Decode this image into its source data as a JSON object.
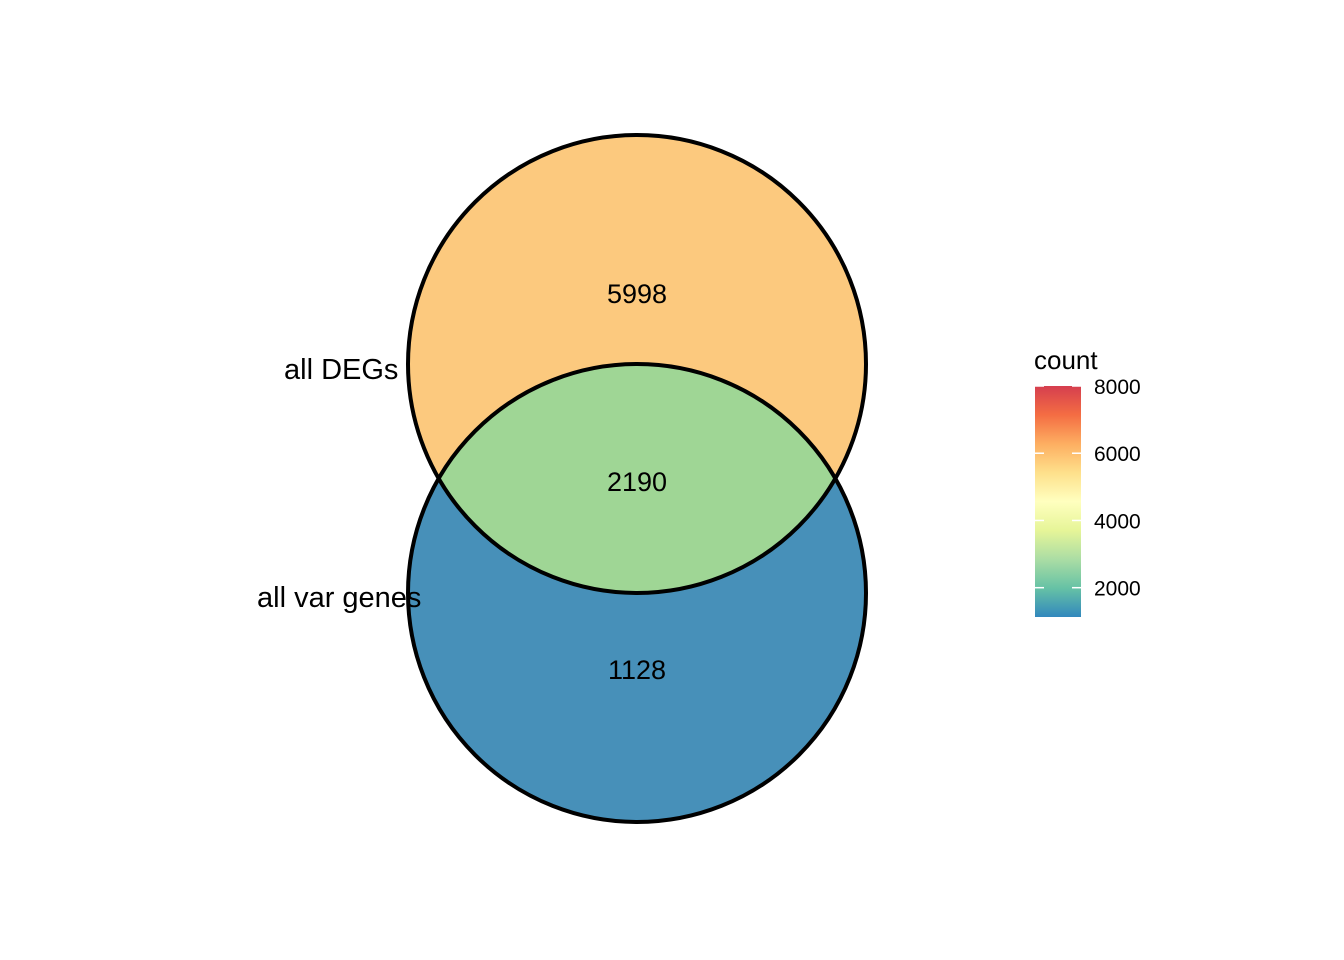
{
  "sets": [
    {
      "label": "all DEGs"
    },
    {
      "label": "all var genes"
    }
  ],
  "regions": [
    {
      "id": "degs_only",
      "count": "5998",
      "color": "#FCC97E"
    },
    {
      "id": "intersection",
      "count": "2190",
      "color": "#9FD695"
    },
    {
      "id": "var_only",
      "count": "1128",
      "color": "#4790B9"
    }
  ],
  "legend": {
    "title": "count",
    "min": 1128,
    "max": 8000,
    "ticks": [
      {
        "value": 2000,
        "label": "2000"
      },
      {
        "value": 4000,
        "label": "4000"
      },
      {
        "value": 6000,
        "label": "6000"
      },
      {
        "value": 8000,
        "label": "8000"
      }
    ],
    "palette": [
      "#D53E4F",
      "#F46D43",
      "#FDAE61",
      "#FEE08B",
      "#FFFFBF",
      "#E6F598",
      "#ABDDA4",
      "#66C2A5",
      "#3288BD"
    ]
  },
  "chart_data": {
    "type": "venn",
    "sets": [
      "all DEGs",
      "all var genes"
    ],
    "regions": [
      {
        "sets": [
          "all DEGs"
        ],
        "value": 5998
      },
      {
        "sets": [
          "all DEGs",
          "all var genes"
        ],
        "value": 2190
      },
      {
        "sets": [
          "all var genes"
        ],
        "value": 1128
      }
    ],
    "legend": {
      "title": "count",
      "range": [
        1128,
        8000
      ],
      "ticks": [
        2000,
        4000,
        6000,
        8000
      ],
      "placement": "right"
    }
  }
}
